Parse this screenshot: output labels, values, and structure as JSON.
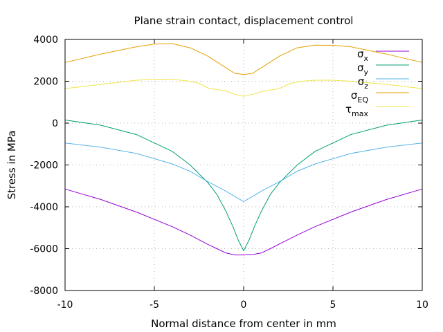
{
  "chart_data": {
    "type": "line",
    "title": "Plane strain contact, displacement control",
    "xlabel": "Normal distance from center in mm",
    "ylabel": "Stress in MPa",
    "xlim": [
      -10,
      10
    ],
    "ylim": [
      -8000,
      4000
    ],
    "xticks": [
      -10,
      -5,
      0,
      5,
      10
    ],
    "yticks": [
      -8000,
      -6000,
      -4000,
      -2000,
      0,
      2000,
      4000
    ],
    "grid": true,
    "legend_position": "top-right",
    "series": [
      {
        "name": "σx",
        "symbol": "σ",
        "subscript": "x",
        "color": "#9400d3",
        "x": [
          -10,
          -8,
          -6,
          -4,
          -3,
          -2,
          -1.5,
          -1,
          -0.5,
          0,
          0.5,
          1,
          1.5,
          2,
          3,
          4,
          6,
          8,
          10
        ],
        "y": [
          -3150,
          -3650,
          -4250,
          -4950,
          -5350,
          -5800,
          -6000,
          -6200,
          -6300,
          -6300,
          -6280,
          -6200,
          -6000,
          -5780,
          -5350,
          -4950,
          -4250,
          -3650,
          -3150
        ]
      },
      {
        "name": "σy",
        "symbol": "σ",
        "subscript": "y",
        "color": "#009e73",
        "x": [
          -10,
          -8,
          -6,
          -4,
          -3,
          -2,
          -1.5,
          -1,
          -0.6,
          -0.3,
          0,
          0.3,
          0.6,
          1,
          1.5,
          2,
          3,
          4,
          6,
          8,
          10
        ],
        "y": [
          150,
          -100,
          -550,
          -1350,
          -2000,
          -2850,
          -3400,
          -4200,
          -4950,
          -5600,
          -6100,
          -5600,
          -4950,
          -4200,
          -3400,
          -2850,
          -2000,
          -1350,
          -550,
          -100,
          150
        ]
      },
      {
        "name": "σz",
        "symbol": "σ",
        "subscript": "z",
        "color": "#56b4e9",
        "x": [
          -10,
          -8,
          -6,
          -4,
          -3,
          -2,
          -1,
          -0.5,
          0,
          0.5,
          1,
          2,
          3,
          4,
          6,
          8,
          10
        ],
        "y": [
          -950,
          -1150,
          -1450,
          -1950,
          -2300,
          -2800,
          -3250,
          -3500,
          -3750,
          -3500,
          -3250,
          -2800,
          -2300,
          -1950,
          -1450,
          -1150,
          -950
        ]
      },
      {
        "name": "σEQ",
        "symbol": "σ",
        "subscript": "EQ",
        "color": "#e69f00",
        "x": [
          -10,
          -8,
          -6,
          -5,
          -4,
          -3,
          -2,
          -1,
          -0.5,
          0,
          0.5,
          1,
          2,
          3,
          4,
          5,
          6,
          8,
          10
        ],
        "y": [
          2900,
          3300,
          3650,
          3780,
          3800,
          3600,
          3200,
          2650,
          2380,
          2320,
          2380,
          2650,
          3200,
          3600,
          3730,
          3720,
          3650,
          3300,
          2900
        ]
      },
      {
        "name": "τmax",
        "symbol": "τ",
        "subscript": "max",
        "color": "#f0e442",
        "x": [
          -10,
          -8,
          -6,
          -5,
          -4,
          -3,
          -2.5,
          -2,
          -1.5,
          -1,
          -0.5,
          0,
          0.5,
          1,
          1.5,
          2,
          2.5,
          3,
          4,
          5,
          6,
          8,
          10
        ],
        "y": [
          1650,
          1850,
          2050,
          2100,
          2100,
          2000,
          1900,
          1680,
          1600,
          1550,
          1380,
          1280,
          1380,
          1500,
          1580,
          1650,
          1850,
          1980,
          2050,
          2050,
          2000,
          1850,
          1650
        ]
      }
    ]
  }
}
